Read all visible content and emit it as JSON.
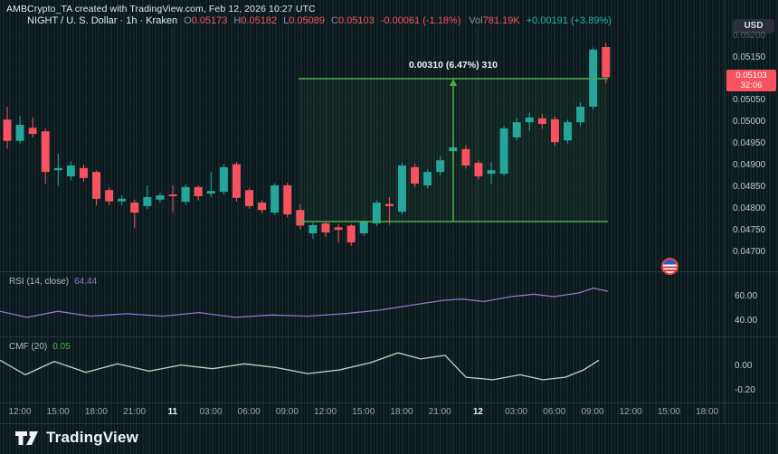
{
  "header": {
    "credit": "AMBCrypto_TA created with TradingView.com, Feb 12, 2026 10:27 UTC"
  },
  "symbol_bar": {
    "title": "NIGHT / U. S. Dollar · 1h · Kraken",
    "ohlc": [
      {
        "label": "O",
        "value": "0.05173"
      },
      {
        "label": "H",
        "value": "0.05182"
      },
      {
        "label": "L",
        "value": "0.05089"
      },
      {
        "label": "C",
        "value": "0.05103"
      }
    ],
    "change": "-0.00061 (-1.18%)",
    "vol_label": "Vol",
    "vol_value": "781.19K",
    "change2": "+0.00191 (+3.89%)"
  },
  "price_axis": {
    "currency": "USD",
    "labels": [
      "0.05200",
      "0.05150",
      "0.05050",
      "0.05000",
      "0.04950",
      "0.04900",
      "0.04850",
      "0.04800",
      "0.04750",
      "0.04700"
    ],
    "last_price": "0.05103",
    "countdown": "32:06"
  },
  "measure_tool": {
    "label": "0.00310 (6.47%) 310"
  },
  "rsi": {
    "title": "RSI (14, close)",
    "value": "64.44",
    "axis": [
      "60.00",
      "40.00"
    ]
  },
  "cmf": {
    "title": "CMF (20)",
    "value": "0.05",
    "axis": [
      "0.00",
      "-0.20"
    ]
  },
  "time_axis": [
    {
      "t": "12:00",
      "major": false
    },
    {
      "t": "15:00",
      "major": false
    },
    {
      "t": "18:00",
      "major": false
    },
    {
      "t": "21:00",
      "major": false
    },
    {
      "t": "11",
      "major": true
    },
    {
      "t": "03:00",
      "major": false
    },
    {
      "t": "06:00",
      "major": false
    },
    {
      "t": "09:00",
      "major": false
    },
    {
      "t": "12:00",
      "major": false
    },
    {
      "t": "15:00",
      "major": false
    },
    {
      "t": "18:00",
      "major": false
    },
    {
      "t": "21:00",
      "major": false
    },
    {
      "t": "12",
      "major": true
    },
    {
      "t": "03:00",
      "major": false
    },
    {
      "t": "06:00",
      "major": false
    },
    {
      "t": "09:00",
      "major": false
    },
    {
      "t": "12:00",
      "major": false
    },
    {
      "t": "15:00",
      "major": false
    },
    {
      "t": "18:00",
      "major": false
    }
  ],
  "footer": {
    "brand": "TradingView"
  },
  "colors": {
    "up": "#26a69a",
    "down": "#f6525f",
    "measure": "#4caf50",
    "rsi_line": "#9575cd",
    "cmf_line": "#b9d8bd",
    "tag_bg": "#f6525f"
  },
  "chart_data": {
    "type": "candlestick",
    "symbol": "NIGHT/USD",
    "interval": "1h",
    "exchange": "Kraken",
    "ylim": [
      0.0468,
      0.0522
    ],
    "candles": [
      [
        0.05005,
        0.05035,
        0.04938,
        0.04956
      ],
      [
        0.04956,
        0.05014,
        0.0495,
        0.04993
      ],
      [
        0.04986,
        0.0501,
        0.04964,
        0.04972
      ],
      [
        0.04978,
        0.04984,
        0.04857,
        0.04884
      ],
      [
        0.04888,
        0.04926,
        0.04852,
        0.04893
      ],
      [
        0.04874,
        0.04909,
        0.04865,
        0.04899
      ],
      [
        0.04893,
        0.04901,
        0.04861,
        0.0487
      ],
      [
        0.04884,
        0.04888,
        0.04806,
        0.04822
      ],
      [
        0.04842,
        0.04848,
        0.04807,
        0.04816
      ],
      [
        0.04816,
        0.0483,
        0.04806,
        0.04822
      ],
      [
        0.04813,
        0.0482,
        0.04754,
        0.0479
      ],
      [
        0.04805,
        0.04853,
        0.04798,
        0.04826
      ],
      [
        0.0482,
        0.04836,
        0.04813,
        0.0483
      ],
      [
        0.04832,
        0.04853,
        0.0479,
        0.04828
      ],
      [
        0.04815,
        0.04855,
        0.04808,
        0.04849
      ],
      [
        0.04849,
        0.04853,
        0.04818,
        0.04828
      ],
      [
        0.04834,
        0.04884,
        0.04826,
        0.0484
      ],
      [
        0.04838,
        0.04901,
        0.04832,
        0.04895
      ],
      [
        0.04902,
        0.04907,
        0.04816,
        0.04824
      ],
      [
        0.04842,
        0.04846,
        0.04799,
        0.04805
      ],
      [
        0.04813,
        0.04818,
        0.04788,
        0.04796
      ],
      [
        0.0479,
        0.04858,
        0.04784,
        0.04853
      ],
      [
        0.04853,
        0.04859,
        0.04779,
        0.04786
      ],
      [
        0.04796,
        0.04809,
        0.04751,
        0.0476
      ],
      [
        0.04742,
        0.04766,
        0.04729,
        0.04761
      ],
      [
        0.04765,
        0.0477,
        0.04734,
        0.04744
      ],
      [
        0.04756,
        0.04763,
        0.04721,
        0.0475
      ],
      [
        0.0476,
        0.04764,
        0.04713,
        0.04721
      ],
      [
        0.04742,
        0.04772,
        0.04736,
        0.04769
      ],
      [
        0.04765,
        0.04818,
        0.04759,
        0.04813
      ],
      [
        0.0481,
        0.04826,
        0.04762,
        0.04805
      ],
      [
        0.04792,
        0.04905,
        0.04786,
        0.04899
      ],
      [
        0.04895,
        0.04903,
        0.04849,
        0.04857
      ],
      [
        0.04853,
        0.0489,
        0.04846,
        0.04884
      ],
      [
        0.04884,
        0.0492,
        0.04877,
        0.04911
      ],
      [
        0.04932,
        0.04953,
        0.04902,
        0.04941
      ],
      [
        0.04937,
        0.04945,
        0.04892,
        0.04899
      ],
      [
        0.04905,
        0.04911,
        0.04867,
        0.04874
      ],
      [
        0.0488,
        0.04907,
        0.04856,
        0.04888
      ],
      [
        0.0488,
        0.0499,
        0.04875,
        0.04985
      ],
      [
        0.04964,
        0.05008,
        0.04957,
        0.04999
      ],
      [
        0.04999,
        0.05022,
        0.04979,
        0.0501
      ],
      [
        0.05008,
        0.05018,
        0.04984,
        0.04995
      ],
      [
        0.05006,
        0.05012,
        0.04944,
        0.04953
      ],
      [
        0.04957,
        0.05005,
        0.0495,
        0.04999
      ],
      [
        0.04999,
        0.05045,
        0.04989,
        0.05035
      ],
      [
        0.05035,
        0.05172,
        0.05029,
        0.05167
      ],
      [
        0.05173,
        0.05182,
        0.05089,
        0.05103
      ]
    ],
    "indicators": {
      "rsi": {
        "name": "RSI (14, close)",
        "last": 64.44,
        "points": [
          [
            0,
            48
          ],
          [
            30,
            43
          ],
          [
            64,
            48
          ],
          [
            100,
            44
          ],
          [
            140,
            46
          ],
          [
            180,
            44
          ],
          [
            220,
            47
          ],
          [
            260,
            43
          ],
          [
            300,
            45
          ],
          [
            340,
            44
          ],
          [
            380,
            46
          ],
          [
            420,
            49
          ],
          [
            455,
            53
          ],
          [
            490,
            57
          ],
          [
            510,
            58
          ],
          [
            535,
            56
          ],
          [
            565,
            60
          ],
          [
            590,
            62
          ],
          [
            612,
            60
          ],
          [
            640,
            63
          ],
          [
            656,
            67
          ],
          [
            672,
            64.4
          ]
        ]
      },
      "cmf": {
        "name": "CMF (20)",
        "last": 0.05,
        "points": [
          [
            0,
            0.05
          ],
          [
            28,
            -0.07
          ],
          [
            60,
            0.04
          ],
          [
            95,
            -0.05
          ],
          [
            130,
            0.02
          ],
          [
            165,
            -0.04
          ],
          [
            200,
            0.01
          ],
          [
            235,
            -0.02
          ],
          [
            270,
            0.02
          ],
          [
            305,
            -0.01
          ],
          [
            340,
            -0.06
          ],
          [
            375,
            -0.03
          ],
          [
            410,
            0.03
          ],
          [
            440,
            0.11
          ],
          [
            465,
            0.06
          ],
          [
            492,
            0.09
          ],
          [
            515,
            -0.09
          ],
          [
            545,
            -0.11
          ],
          [
            575,
            -0.07
          ],
          [
            600,
            -0.11
          ],
          [
            625,
            -0.09
          ],
          [
            645,
            -0.03
          ],
          [
            662,
            0.05
          ]
        ]
      }
    },
    "measurement": {
      "from_price": 0.0479,
      "to_price": 0.051,
      "label": "0.00310 (6.47%) 310"
    }
  }
}
